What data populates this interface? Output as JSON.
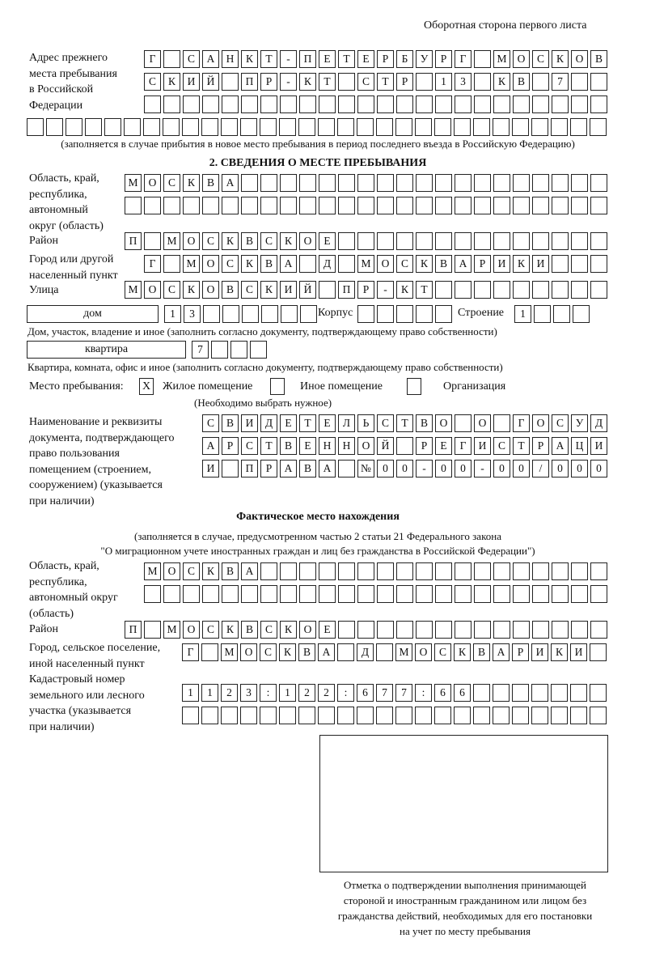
{
  "header": "Оборотная сторона первого листа",
  "previous_address": {
    "label": [
      "Адрес прежнего",
      "места пребывания",
      "в Российской",
      "Федерации"
    ],
    "rows": [
      [
        "Г",
        "",
        "С",
        "А",
        "Н",
        "К",
        "Т",
        "-",
        "П",
        "Е",
        "Т",
        "Е",
        "Р",
        "Б",
        "У",
        "Р",
        "Г",
        "",
        "М",
        "О",
        "С",
        "К",
        "О",
        "В"
      ],
      [
        "С",
        "К",
        "И",
        "Й",
        "",
        "П",
        "Р",
        "-",
        "К",
        "Т",
        "",
        "С",
        "Т",
        "Р",
        "",
        "1",
        "3",
        "",
        "К",
        "В",
        "",
        "7",
        "",
        ""
      ],
      [
        "",
        "",
        "",
        "",
        "",
        "",
        "",
        "",
        "",
        "",
        "",
        "",
        "",
        "",
        "",
        "",
        "",
        "",
        "",
        "",
        "",
        "",
        "",
        ""
      ],
      [
        "",
        "",
        "",
        "",
        "",
        "",
        "",
        "",
        "",
        "",
        "",
        "",
        "",
        "",
        "",
        "",
        "",
        "",
        "",
        "",
        "",
        "",
        "",
        "",
        "",
        "",
        "",
        "",
        "",
        ""
      ]
    ],
    "note": "(заполняется в случае прибытия в новое место пребывания в период последнего въезда в Российскую Федерацию)"
  },
  "section2": {
    "title": "2. СВЕДЕНИЯ О МЕСТЕ ПРЕБЫВАНИЯ",
    "region": {
      "label": [
        "Область, край,",
        "республика,",
        "автономный",
        "округ (область)"
      ],
      "rows": [
        [
          "М",
          "О",
          "С",
          "К",
          "В",
          "А",
          "",
          "",
          "",
          "",
          "",
          "",
          "",
          "",
          "",
          "",
          "",
          "",
          "",
          "",
          "",
          "",
          "",
          "",
          ""
        ],
        [
          "",
          "",
          "",
          "",
          "",
          "",
          "",
          "",
          "",
          "",
          "",
          "",
          "",
          "",
          "",
          "",
          "",
          "",
          "",
          "",
          "",
          "",
          "",
          "",
          ""
        ]
      ]
    },
    "district": {
      "label": [
        "Район"
      ],
      "rows": [
        [
          "П",
          "",
          "М",
          "О",
          "С",
          "К",
          "В",
          "С",
          "К",
          "О",
          "Е",
          "",
          "",
          "",
          "",
          "",
          "",
          "",
          "",
          "",
          "",
          "",
          "",
          "",
          ""
        ]
      ]
    },
    "city": {
      "label": [
        "Город или другой",
        "населенный пункт"
      ],
      "rows": [
        [
          "Г",
          "",
          "М",
          "О",
          "С",
          "К",
          "В",
          "А",
          "",
          "Д",
          "",
          "М",
          "О",
          "С",
          "К",
          "В",
          "А",
          "Р",
          "И",
          "К",
          "И",
          "",
          "",
          ""
        ]
      ]
    },
    "street": {
      "label": [
        "Улица"
      ],
      "rows": [
        [
          "М",
          "О",
          "С",
          "К",
          "О",
          "В",
          "С",
          "К",
          "И",
          "Й",
          "",
          "П",
          "Р",
          "-",
          "К",
          "Т",
          "",
          "",
          "",
          "",
          "",
          "",
          "",
          "",
          ""
        ]
      ]
    },
    "house": {
      "type_value": "дом",
      "cells": [
        "1",
        "3",
        "",
        "",
        "",
        "",
        "",
        ""
      ],
      "korpus_label": "Корпус",
      "korpus_cells": [
        "",
        "",
        "",
        "",
        ""
      ],
      "building_label": "Строение",
      "building_cells": [
        "1",
        "",
        "",
        ""
      ],
      "note": "Дом, участок, владение и иное (заполнить согласно документу, подтверждающему право собственности)"
    },
    "apartment": {
      "type_value": "квартира",
      "cells": [
        "7",
        "",
        "",
        ""
      ],
      "note": "Квартира, комната, офис и иное (заполнить согласно документу, подтверждающему право собственности)"
    },
    "place_of_stay": {
      "label": "Место пребывания:",
      "options": [
        {
          "label": "Жилое помещение",
          "mark": "X"
        },
        {
          "label": "Иное помещение",
          "mark": ""
        },
        {
          "label": "Организация",
          "mark": ""
        }
      ],
      "note": "(Необходимо выбрать нужное)"
    },
    "document": {
      "label": [
        "Наименование и реквизиты",
        "документа, подтверждающего",
        "право пользования",
        "помещением (строением,",
        "сооружением) (указывается",
        "при наличии)"
      ],
      "rows": [
        [
          "С",
          "В",
          "И",
          "Д",
          "Е",
          "Т",
          "Е",
          "Л",
          "Ь",
          "С",
          "Т",
          "В",
          "О",
          "",
          "О",
          "",
          "Г",
          "О",
          "С",
          "У",
          "Д"
        ],
        [
          "А",
          "Р",
          "С",
          "Т",
          "В",
          "Е",
          "Н",
          "Н",
          "О",
          "Й",
          "",
          "Р",
          "Е",
          "Г",
          "И",
          "С",
          "Т",
          "Р",
          "А",
          "Ц",
          "И"
        ],
        [
          "И",
          "",
          "П",
          "Р",
          "А",
          "В",
          "А",
          "",
          "№",
          "0",
          "0",
          "-",
          "0",
          "0",
          "-",
          "0",
          "0",
          "/",
          "0",
          "0",
          "0"
        ]
      ]
    }
  },
  "actual_location": {
    "title": "Фактическое место нахождения",
    "note_lines": [
      "(заполняется в случае, предусмотренном частью 2 статьи 21 Федерального закона",
      "\"О миграционном учете иностранных граждан и лиц без гражданства в Российской Федерации\")"
    ],
    "region": {
      "label": [
        "Область, край,",
        "республика,",
        "автономный округ",
        "(область)"
      ],
      "rows": [
        [
          "М",
          "О",
          "С",
          "К",
          "В",
          "А",
          "",
          "",
          "",
          "",
          "",
          "",
          "",
          "",
          "",
          "",
          "",
          "",
          "",
          "",
          "",
          "",
          "",
          ""
        ],
        [
          "",
          "",
          "",
          "",
          "",
          "",
          "",
          "",
          "",
          "",
          "",
          "",
          "",
          "",
          "",
          "",
          "",
          "",
          "",
          "",
          "",
          "",
          "",
          ""
        ]
      ]
    },
    "district": {
      "label": [
        "Район"
      ],
      "rows": [
        [
          "П",
          "",
          "М",
          "О",
          "С",
          "К",
          "В",
          "С",
          "К",
          "О",
          "Е",
          "",
          "",
          "",
          "",
          "",
          "",
          "",
          "",
          "",
          "",
          "",
          "",
          "",
          ""
        ]
      ]
    },
    "city": {
      "label": [
        "Город, сельское поселение,",
        "иной населенный пункт"
      ],
      "rows": [
        [
          "Г",
          "",
          "М",
          "О",
          "С",
          "К",
          "В",
          "А",
          "",
          "Д",
          "",
          "М",
          "О",
          "С",
          "К",
          "В",
          "А",
          "Р",
          "И",
          "К",
          "И",
          ""
        ]
      ]
    },
    "cadastral": {
      "label": [
        "Кадастровый номер",
        "земельного или лесного",
        "участка (указывается",
        "при наличии)"
      ],
      "rows": [
        [
          "1",
          "1",
          "2",
          "3",
          ":",
          "1",
          "2",
          "2",
          ":",
          "6",
          "7",
          "7",
          ":",
          "6",
          "6",
          "",
          "",
          "",
          "",
          "",
          "",
          ""
        ],
        [
          "",
          "",
          "",
          "",
          "",
          "",
          "",
          "",
          "",
          "",
          "",
          "",
          "",
          "",
          "",
          "",
          "",
          "",
          "",
          "",
          "",
          ""
        ]
      ]
    }
  },
  "confirmation": {
    "caption": [
      "Отметка о подтверждении выполнения принимающей",
      "стороной и иностранным гражданином или лицом без",
      "гражданства действий, необходимых для его постановки",
      "на учет по месту пребывания"
    ]
  }
}
